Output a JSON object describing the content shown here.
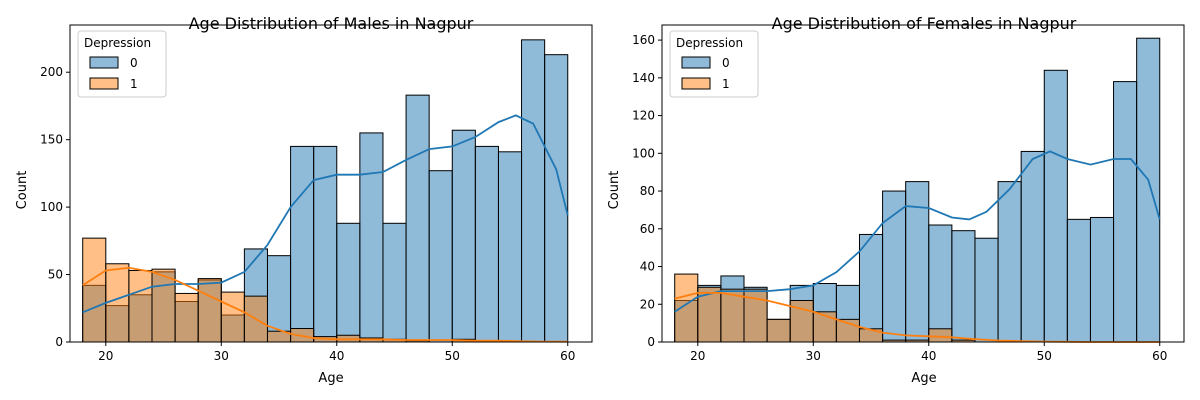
{
  "chart_data": [
    {
      "type": "histogram",
      "title": "Age Distribution of Males in Nagpur",
      "xlabel": "Age",
      "ylabel": "Count",
      "xlim": [
        16.9,
        62.1
      ],
      "ylim": [
        0,
        235
      ],
      "xticks": [
        20,
        30,
        40,
        50,
        60
      ],
      "yticks": [
        0,
        50,
        100,
        150,
        200
      ],
      "bin_edges": [
        18,
        20,
        22,
        24,
        26,
        28,
        30,
        32,
        34,
        36,
        38,
        40,
        42,
        44,
        46,
        48,
        50,
        52,
        54,
        56,
        58,
        60
      ],
      "legend_title": "Depression",
      "legend_position": "top-left",
      "series": [
        {
          "name": "0",
          "color": "#1f77b4",
          "counts": [
            42,
            27,
            35,
            52,
            30,
            46,
            20,
            69,
            64,
            145,
            145,
            88,
            155,
            88,
            183,
            127,
            157,
            145,
            141,
            224,
            213
          ],
          "kde": [
            [
              18,
              22
            ],
            [
              20,
              29
            ],
            [
              22,
              35
            ],
            [
              24,
              41
            ],
            [
              26,
              43
            ],
            [
              28,
              43
            ],
            [
              30,
              44
            ],
            [
              32,
              52
            ],
            [
              34,
              72
            ],
            [
              36,
              100
            ],
            [
              38,
              120
            ],
            [
              40,
              124
            ],
            [
              42,
              124
            ],
            [
              44,
              126
            ],
            [
              46,
              135
            ],
            [
              48,
              143
            ],
            [
              50,
              145
            ],
            [
              52,
              152
            ],
            [
              54,
              163
            ],
            [
              55.5,
              168
            ],
            [
              57,
              162
            ],
            [
              59,
              128
            ],
            [
              60,
              94
            ]
          ]
        },
        {
          "name": "1",
          "color": "#ff7f0e",
          "counts": [
            77,
            58,
            53,
            54,
            36,
            47,
            37,
            34,
            8,
            10,
            4,
            5,
            3,
            2,
            1,
            0,
            2,
            1,
            0,
            0,
            0
          ],
          "kde": [
            [
              18,
              42
            ],
            [
              20,
              53
            ],
            [
              22,
              55
            ],
            [
              24,
              52
            ],
            [
              26,
              46
            ],
            [
              28,
              38
            ],
            [
              30,
              30
            ],
            [
              32,
              22
            ],
            [
              34,
              12
            ],
            [
              36,
              6
            ],
            [
              38,
              3
            ],
            [
              40,
              2
            ],
            [
              42,
              2
            ],
            [
              44,
              2
            ],
            [
              46,
              1.5
            ],
            [
              48,
              1.5
            ],
            [
              50,
              1.5
            ],
            [
              52,
              1
            ],
            [
              54,
              1
            ],
            [
              56,
              0.5
            ],
            [
              58,
              0.3
            ],
            [
              60,
              0.2
            ]
          ]
        }
      ]
    },
    {
      "type": "histogram",
      "title": "Age Distribution of Females in Nagpur",
      "xlabel": "Age",
      "ylabel": "Count",
      "xlim": [
        16.9,
        62.1
      ],
      "ylim": [
        0,
        168
      ],
      "xticks": [
        20,
        30,
        40,
        50,
        60
      ],
      "yticks": [
        0,
        20,
        40,
        60,
        80,
        100,
        120,
        140,
        160
      ],
      "bin_edges": [
        18,
        20,
        22,
        24,
        26,
        28,
        30,
        32,
        34,
        36,
        38,
        40,
        42,
        44,
        46,
        48,
        50,
        52,
        54,
        56,
        58,
        60
      ],
      "legend_title": "Depression",
      "legend_position": "top-left",
      "series": [
        {
          "name": "0",
          "color": "#1f77b4",
          "counts": [
            22,
            30,
            35,
            29,
            12,
            30,
            31,
            30,
            57,
            80,
            85,
            62,
            59,
            55,
            85,
            101,
            144,
            65,
            66,
            138,
            161
          ],
          "kde": [
            [
              18,
              16
            ],
            [
              20,
              24
            ],
            [
              22,
              27
            ],
            [
              24,
              27
            ],
            [
              26,
              27
            ],
            [
              28,
              28
            ],
            [
              30,
              30
            ],
            [
              32,
              37
            ],
            [
              34,
              48
            ],
            [
              36,
              63
            ],
            [
              38,
              72
            ],
            [
              40,
              71
            ],
            [
              42,
              66
            ],
            [
              43.5,
              65
            ],
            [
              45,
              69
            ],
            [
              47,
              81
            ],
            [
              49,
              97
            ],
            [
              50.5,
              101
            ],
            [
              52,
              97
            ],
            [
              54,
              94
            ],
            [
              56,
              97
            ],
            [
              57.5,
              97
            ],
            [
              59,
              86
            ],
            [
              60,
              65
            ]
          ]
        },
        {
          "name": "1",
          "color": "#ff7f0e",
          "counts": [
            36,
            29,
            28,
            28,
            12,
            22,
            16,
            12,
            7,
            1,
            1,
            7,
            1,
            0,
            0,
            0,
            0,
            0,
            0,
            0,
            0
          ],
          "kde": [
            [
              18,
              23
            ],
            [
              20,
              26
            ],
            [
              22,
              26
            ],
            [
              24,
              24
            ],
            [
              26,
              22
            ],
            [
              28,
              19
            ],
            [
              30,
              16
            ],
            [
              32,
              12
            ],
            [
              34,
              8
            ],
            [
              36,
              5
            ],
            [
              38,
              3.5
            ],
            [
              40,
              3
            ],
            [
              42,
              2.5
            ],
            [
              44,
              1.5
            ],
            [
              46,
              0.8
            ],
            [
              48,
              0.4
            ],
            [
              50,
              0.2
            ],
            [
              52,
              0.1
            ],
            [
              54,
              0
            ],
            [
              56,
              0
            ],
            [
              58,
              0
            ],
            [
              60,
              0
            ]
          ]
        }
      ]
    }
  ]
}
